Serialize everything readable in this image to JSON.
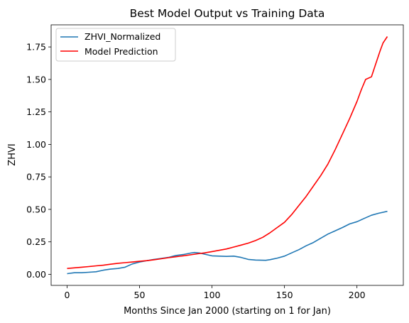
{
  "chart_data": {
    "type": "line",
    "title": "Best Model Output vs Training Data",
    "xlabel": "Months Since Jan 2000 (starting on 1 for Jan)",
    "ylabel": "ZHVI",
    "xlim": [
      -11,
      232
    ],
    "ylim": [
      -0.085,
      1.92
    ],
    "xticks": [
      0,
      50,
      100,
      150,
      200
    ],
    "xtick_labels": [
      "0",
      "50",
      "100",
      "150",
      "200"
    ],
    "yticks": [
      0.0,
      0.25,
      0.5,
      0.75,
      1.0,
      1.25,
      1.5,
      1.75
    ],
    "ytick_labels": [
      "0.00",
      "0.25",
      "0.50",
      "0.75",
      "1.00",
      "1.25",
      "1.50",
      "1.75"
    ],
    "grid": false,
    "legend_position": "top-left",
    "series": [
      {
        "name": "ZHVI_Normalized",
        "color": "#1f77b4",
        "x": [
          0,
          5,
          10,
          15,
          20,
          25,
          30,
          35,
          40,
          45,
          50,
          55,
          60,
          65,
          70,
          75,
          80,
          85,
          88,
          92,
          95,
          100,
          105,
          110,
          115,
          120,
          125,
          130,
          137,
          140,
          145,
          150,
          155,
          160,
          165,
          170,
          175,
          180,
          185,
          190,
          195,
          200,
          205,
          210,
          215,
          221
        ],
        "y": [
          0.005,
          0.012,
          0.012,
          0.016,
          0.02,
          0.032,
          0.04,
          0.045,
          0.055,
          0.08,
          0.095,
          0.105,
          0.115,
          0.122,
          0.13,
          0.145,
          0.152,
          0.163,
          0.168,
          0.163,
          0.155,
          0.142,
          0.14,
          0.138,
          0.14,
          0.13,
          0.115,
          0.11,
          0.108,
          0.113,
          0.125,
          0.14,
          0.165,
          0.19,
          0.22,
          0.245,
          0.278,
          0.31,
          0.335,
          0.36,
          0.388,
          0.405,
          0.43,
          0.455,
          0.47,
          0.485
        ]
      },
      {
        "name": "Model Prediction",
        "color": "#ff0000",
        "x": [
          0,
          5,
          10,
          15,
          20,
          25,
          30,
          35,
          40,
          45,
          50,
          55,
          60,
          65,
          70,
          75,
          80,
          85,
          90,
          95,
          100,
          105,
          110,
          115,
          120,
          125,
          130,
          135,
          140,
          145,
          150,
          155,
          160,
          165,
          170,
          175,
          180,
          185,
          190,
          195,
          200,
          203,
          206,
          210,
          213,
          216,
          218,
          221
        ],
        "y": [
          0.045,
          0.05,
          0.055,
          0.06,
          0.065,
          0.07,
          0.078,
          0.085,
          0.09,
          0.095,
          0.1,
          0.105,
          0.112,
          0.12,
          0.128,
          0.135,
          0.142,
          0.15,
          0.158,
          0.165,
          0.175,
          0.185,
          0.195,
          0.21,
          0.225,
          0.24,
          0.26,
          0.285,
          0.32,
          0.36,
          0.4,
          0.46,
          0.53,
          0.6,
          0.68,
          0.76,
          0.85,
          0.96,
          1.08,
          1.2,
          1.33,
          1.42,
          1.5,
          1.52,
          1.62,
          1.72,
          1.78,
          1.83
        ]
      }
    ]
  }
}
